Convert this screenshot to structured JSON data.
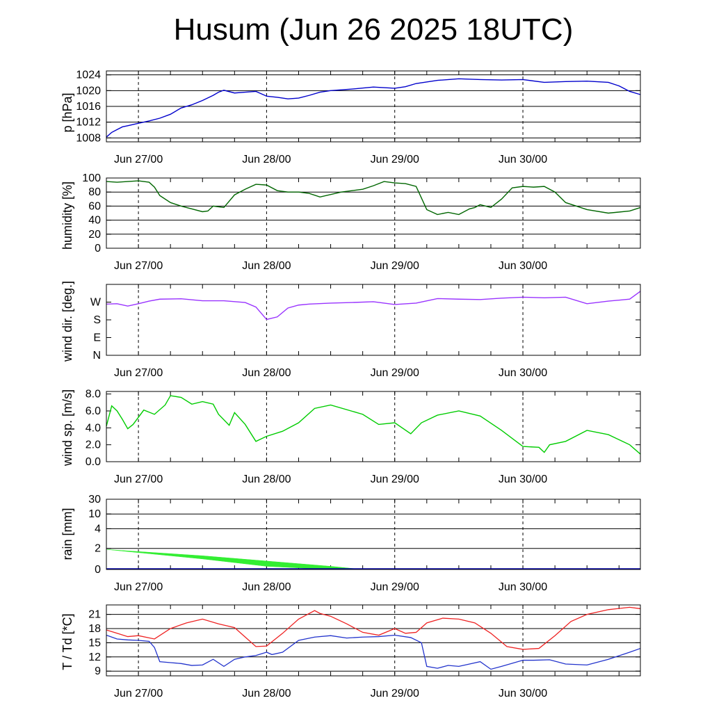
{
  "title": "Husum (Jun 26 2025 18UTC)",
  "x_axis": {
    "start": "2025-06-26T18:00Z",
    "end": "2025-06-30T22:00Z",
    "day_ticks": [
      "Jun 27/00",
      "Jun 28/00",
      "Jun 29/00",
      "Jun 30/00"
    ],
    "day_tick_times": [
      "2025-06-27T00:00Z",
      "2025-06-28T00:00Z",
      "2025-06-29T00:00Z",
      "2025-06-30T00:00Z"
    ]
  },
  "chart_data": [
    {
      "type": "line",
      "ylabel": "p [hPa]",
      "ylim": [
        1007,
        1025
      ],
      "yticks": [
        1008,
        1012,
        1016,
        1020,
        1024
      ],
      "ytick_labels": [
        "1008",
        "1012",
        "1016",
        "1020",
        "1024"
      ],
      "color": "#0000cc",
      "grid": true,
      "x": [
        "2025-06-26T18:00Z",
        "2025-06-26T19:00Z",
        "2025-06-26T20:00Z",
        "2025-06-26T21:00Z",
        "2025-06-26T22:00Z",
        "2025-06-27T00:00Z",
        "2025-06-27T02:00Z",
        "2025-06-27T04:00Z",
        "2025-06-27T06:00Z",
        "2025-06-27T08:00Z",
        "2025-06-27T10:00Z",
        "2025-06-27T12:00Z",
        "2025-06-27T14:00Z",
        "2025-06-27T15:00Z",
        "2025-06-27T16:00Z",
        "2025-06-27T18:00Z",
        "2025-06-27T20:00Z",
        "2025-06-27T22:00Z",
        "2025-06-28T00:00Z",
        "2025-06-28T02:00Z",
        "2025-06-28T04:00Z",
        "2025-06-28T06:00Z",
        "2025-06-28T08:00Z",
        "2025-06-28T10:00Z",
        "2025-06-28T12:00Z",
        "2025-06-28T16:00Z",
        "2025-06-28T20:00Z",
        "2025-06-29T00:00Z",
        "2025-06-29T02:00Z",
        "2025-06-29T04:00Z",
        "2025-06-29T08:00Z",
        "2025-06-29T12:00Z",
        "2025-06-29T16:00Z",
        "2025-06-29T20:00Z",
        "2025-06-30T00:00Z",
        "2025-06-30T04:00Z",
        "2025-06-30T08:00Z",
        "2025-06-30T12:00Z",
        "2025-06-30T16:00Z",
        "2025-06-30T18:00Z",
        "2025-06-30T20:00Z",
        "2025-06-30T22:00Z"
      ],
      "y": [
        1008.2,
        1009.4,
        1010.1,
        1010.8,
        1011.1,
        1011.7,
        1012.3,
        1013.0,
        1014.0,
        1015.6,
        1016.4,
        1017.5,
        1018.8,
        1019.6,
        1020.1,
        1019.4,
        1019.6,
        1019.8,
        1018.6,
        1018.3,
        1017.9,
        1018.1,
        1018.8,
        1019.6,
        1020.0,
        1020.4,
        1020.9,
        1020.6,
        1021.0,
        1021.8,
        1022.6,
        1023.0,
        1022.8,
        1022.7,
        1022.8,
        1022.1,
        1022.3,
        1022.4,
        1022.1,
        1021.2,
        1019.8,
        1019.0
      ]
    },
    {
      "type": "line",
      "ylabel": "humidity [%]",
      "ylim": [
        0,
        100
      ],
      "yticks": [
        0,
        20,
        40,
        60,
        80,
        100
      ],
      "ytick_labels": [
        "0",
        "20",
        "40",
        "60",
        "80",
        "100"
      ],
      "color": "#006600",
      "grid": true,
      "x": [
        "2025-06-26T18:00Z",
        "2025-06-26T20:00Z",
        "2025-06-26T22:00Z",
        "2025-06-27T00:00Z",
        "2025-06-27T02:00Z",
        "2025-06-27T03:00Z",
        "2025-06-27T04:00Z",
        "2025-06-27T06:00Z",
        "2025-06-27T08:00Z",
        "2025-06-27T10:00Z",
        "2025-06-27T12:00Z",
        "2025-06-27T13:00Z",
        "2025-06-27T14:00Z",
        "2025-06-27T16:00Z",
        "2025-06-27T18:00Z",
        "2025-06-27T20:00Z",
        "2025-06-27T22:00Z",
        "2025-06-28T00:00Z",
        "2025-06-28T02:00Z",
        "2025-06-28T04:00Z",
        "2025-06-28T06:00Z",
        "2025-06-28T08:00Z",
        "2025-06-28T10:00Z",
        "2025-06-28T14:00Z",
        "2025-06-28T18:00Z",
        "2025-06-28T20:00Z",
        "2025-06-28T22:00Z",
        "2025-06-29T00:00Z",
        "2025-06-29T02:00Z",
        "2025-06-29T04:00Z",
        "2025-06-29T06:00Z",
        "2025-06-29T08:00Z",
        "2025-06-29T10:00Z",
        "2025-06-29T12:00Z",
        "2025-06-29T14:00Z",
        "2025-06-29T15:00Z",
        "2025-06-29T16:00Z",
        "2025-06-29T18:00Z",
        "2025-06-29T20:00Z",
        "2025-06-29T22:00Z",
        "2025-06-30T00:00Z",
        "2025-06-30T02:00Z",
        "2025-06-30T04:00Z",
        "2025-06-30T06:00Z",
        "2025-06-30T08:00Z",
        "2025-06-30T12:00Z",
        "2025-06-30T16:00Z",
        "2025-06-30T20:00Z",
        "2025-06-30T22:00Z"
      ],
      "y": [
        95,
        94,
        95,
        96,
        94,
        87,
        75,
        65,
        60,
        56,
        52,
        53,
        60,
        58,
        76,
        84,
        91,
        90,
        82,
        80,
        80,
        78,
        73,
        80,
        84,
        89,
        95,
        93,
        92,
        88,
        55,
        48,
        51,
        48,
        56,
        58,
        62,
        58,
        70,
        86,
        88,
        87,
        88,
        80,
        65,
        55,
        50,
        53,
        58
      ]
    },
    {
      "type": "line",
      "ylabel": "wind dir. [deg.]",
      "ylim": [
        0,
        360
      ],
      "yticks": [
        0,
        90,
        180,
        270
      ],
      "ytick_labels": [
        "N",
        "E",
        "S",
        "W"
      ],
      "color": "#9933ff",
      "grid": false,
      "x": [
        "2025-06-26T18:00Z",
        "2025-06-26T20:00Z",
        "2025-06-26T22:00Z",
        "2025-06-27T00:00Z",
        "2025-06-27T02:00Z",
        "2025-06-27T04:00Z",
        "2025-06-27T08:00Z",
        "2025-06-27T12:00Z",
        "2025-06-27T16:00Z",
        "2025-06-27T20:00Z",
        "2025-06-27T22:00Z",
        "2025-06-28T00:00Z",
        "2025-06-28T02:00Z",
        "2025-06-28T04:00Z",
        "2025-06-28T06:00Z",
        "2025-06-28T08:00Z",
        "2025-06-28T12:00Z",
        "2025-06-28T16:00Z",
        "2025-06-28T20:00Z",
        "2025-06-29T00:00Z",
        "2025-06-29T04:00Z",
        "2025-06-29T08:00Z",
        "2025-06-29T12:00Z",
        "2025-06-29T16:00Z",
        "2025-06-29T20:00Z",
        "2025-06-30T00:00Z",
        "2025-06-30T04:00Z",
        "2025-06-30T08:00Z",
        "2025-06-30T12:00Z",
        "2025-06-30T16:00Z",
        "2025-06-30T20:00Z",
        "2025-06-30T22:00Z"
      ],
      "y": [
        260,
        262,
        250,
        262,
        275,
        285,
        287,
        277,
        277,
        268,
        245,
        182,
        195,
        240,
        255,
        260,
        265,
        268,
        272,
        258,
        265,
        288,
        285,
        283,
        290,
        295,
        292,
        295,
        262,
        275,
        285,
        325
      ]
    },
    {
      "type": "line",
      "ylabel": "wind sp. [m/s]",
      "ylim": [
        0,
        8.3
      ],
      "yticks": [
        0,
        2,
        4,
        6,
        8
      ],
      "ytick_labels": [
        "0.0",
        "2.0",
        "4.0",
        "6.0",
        "8.0"
      ],
      "color": "#00cc00",
      "grid": false,
      "x": [
        "2025-06-26T18:00Z",
        "2025-06-26T19:00Z",
        "2025-06-26T20:00Z",
        "2025-06-26T21:00Z",
        "2025-06-26T22:00Z",
        "2025-06-26T23:00Z",
        "2025-06-27T01:00Z",
        "2025-06-27T03:00Z",
        "2025-06-27T05:00Z",
        "2025-06-27T06:00Z",
        "2025-06-27T08:00Z",
        "2025-06-27T10:00Z",
        "2025-06-27T12:00Z",
        "2025-06-27T14:00Z",
        "2025-06-27T15:00Z",
        "2025-06-27T17:00Z",
        "2025-06-27T18:00Z",
        "2025-06-27T20:00Z",
        "2025-06-27T22:00Z",
        "2025-06-28T00:00Z",
        "2025-06-28T03:00Z",
        "2025-06-28T06:00Z",
        "2025-06-28T09:00Z",
        "2025-06-28T12:00Z",
        "2025-06-28T18:00Z",
        "2025-06-28T21:00Z",
        "2025-06-29T00:00Z",
        "2025-06-29T03:00Z",
        "2025-06-29T05:00Z",
        "2025-06-29T08:00Z",
        "2025-06-29T12:00Z",
        "2025-06-29T16:00Z",
        "2025-06-29T20:00Z",
        "2025-06-30T00:00Z",
        "2025-06-30T03:00Z",
        "2025-06-30T04:00Z",
        "2025-06-30T05:00Z",
        "2025-06-30T08:00Z",
        "2025-06-30T12:00Z",
        "2025-06-30T16:00Z",
        "2025-06-30T18:00Z",
        "2025-06-30T20:00Z",
        "2025-06-30T22:00Z"
      ],
      "y": [
        4.2,
        6.6,
        6.0,
        5.0,
        3.9,
        4.4,
        6.1,
        5.6,
        6.7,
        7.8,
        7.6,
        6.8,
        7.1,
        6.8,
        5.6,
        4.3,
        5.8,
        4.4,
        2.4,
        3.0,
        3.6,
        4.6,
        6.3,
        6.7,
        5.6,
        4.4,
        4.6,
        3.3,
        4.6,
        5.5,
        6.0,
        5.4,
        3.7,
        1.8,
        1.7,
        1.1,
        2.0,
        2.4,
        3.7,
        3.2,
        2.6,
        2.0,
        0.9
      ]
    },
    {
      "type": "area",
      "ylabel": "rain [mm]",
      "ylim": [
        0,
        30
      ],
      "yticks": [
        0,
        2,
        4,
        10,
        30
      ],
      "ytick_labels": [
        "0",
        "2",
        "4",
        "10",
        "30"
      ],
      "scale": "log-like (0,2,4,10,30 at uneven spacing)",
      "color": "#33ee33",
      "grid": true,
      "x": [
        "2025-06-26T18:00Z",
        "2025-06-27T00:00Z",
        "2025-06-27T12:00Z",
        "2025-06-28T00:00Z",
        "2025-06-28T12:00Z",
        "2025-06-28T18:00Z",
        "2025-06-29T00:00Z",
        "2025-06-30T22:00Z"
      ],
      "y_upper": [
        1.9,
        1.7,
        1.3,
        0.8,
        0.3,
        0.0,
        0.0,
        0.0
      ],
      "y_lower": [
        1.9,
        1.6,
        1.0,
        0.3,
        0.0,
        0.0,
        0.0,
        0.0
      ]
    },
    {
      "type": "line",
      "ylabel": "T / Td [*C]",
      "ylim": [
        8,
        23
      ],
      "yticks": [
        9,
        12,
        15,
        18,
        21
      ],
      "ytick_labels": [
        "9",
        "12",
        "15",
        "18",
        "21"
      ],
      "grid": true,
      "series": [
        {
          "color": "#ee2222",
          "x": [
            "2025-06-26T18:00Z",
            "2025-06-26T20:00Z",
            "2025-06-26T22:00Z",
            "2025-06-27T00:00Z",
            "2025-06-27T03:00Z",
            "2025-06-27T06:00Z",
            "2025-06-27T09:00Z",
            "2025-06-27T12:00Z",
            "2025-06-27T15:00Z",
            "2025-06-27T18:00Z",
            "2025-06-27T20:00Z",
            "2025-06-27T22:00Z",
            "2025-06-28T00:00Z",
            "2025-06-28T03:00Z",
            "2025-06-28T06:00Z",
            "2025-06-28T09:00Z",
            "2025-06-28T10:00Z",
            "2025-06-28T12:00Z",
            "2025-06-28T15:00Z",
            "2025-06-28T18:00Z",
            "2025-06-28T21:00Z",
            "2025-06-29T00:00Z",
            "2025-06-29T02:00Z",
            "2025-06-29T04:00Z",
            "2025-06-29T06:00Z",
            "2025-06-29T09:00Z",
            "2025-06-29T12:00Z",
            "2025-06-29T15:00Z",
            "2025-06-29T18:00Z",
            "2025-06-29T21:00Z",
            "2025-06-30T00:00Z",
            "2025-06-30T03:00Z",
            "2025-06-30T06:00Z",
            "2025-06-30T09:00Z",
            "2025-06-30T12:00Z",
            "2025-06-30T16:00Z",
            "2025-06-30T20:00Z",
            "2025-06-30T22:00Z"
          ],
          "y": [
            17.7,
            17.0,
            16.3,
            16.5,
            15.8,
            18.0,
            19.2,
            20.0,
            19.0,
            18.2,
            16.2,
            14.2,
            14.3,
            17.0,
            20.0,
            21.8,
            21.2,
            20.6,
            19.0,
            17.2,
            16.6,
            18.0,
            17.0,
            17.2,
            19.2,
            20.2,
            20.0,
            19.2,
            17.0,
            14.2,
            13.6,
            13.8,
            16.5,
            19.5,
            21.0,
            22.0,
            22.5,
            22.2
          ]
        },
        {
          "color": "#2233cc",
          "x": [
            "2025-06-26T18:00Z",
            "2025-06-26T20:00Z",
            "2025-06-26T22:00Z",
            "2025-06-27T00:00Z",
            "2025-06-27T02:00Z",
            "2025-06-27T03:00Z",
            "2025-06-27T04:00Z",
            "2025-06-27T06:00Z",
            "2025-06-27T08:00Z",
            "2025-06-27T10:00Z",
            "2025-06-27T12:00Z",
            "2025-06-27T14:00Z",
            "2025-06-27T16:00Z",
            "2025-06-27T18:00Z",
            "2025-06-27T20:00Z",
            "2025-06-27T22:00Z",
            "2025-06-28T00:00Z",
            "2025-06-28T01:00Z",
            "2025-06-28T03:00Z",
            "2025-06-28T06:00Z",
            "2025-06-28T09:00Z",
            "2025-06-28T12:00Z",
            "2025-06-28T15:00Z",
            "2025-06-28T18:00Z",
            "2025-06-28T21:00Z",
            "2025-06-29T00:00Z",
            "2025-06-29T03:00Z",
            "2025-06-29T05:00Z",
            "2025-06-29T06:00Z",
            "2025-06-29T08:00Z",
            "2025-06-29T10:00Z",
            "2025-06-29T12:00Z",
            "2025-06-29T14:00Z",
            "2025-06-29T16:00Z",
            "2025-06-29T18:00Z",
            "2025-06-29T20:00Z",
            "2025-06-30T00:00Z",
            "2025-06-30T02:00Z",
            "2025-06-30T05:00Z",
            "2025-06-30T08:00Z",
            "2025-06-30T12:00Z",
            "2025-06-30T16:00Z",
            "2025-06-30T20:00Z",
            "2025-06-30T22:00Z"
          ],
          "y": [
            16.6,
            15.8,
            15.6,
            15.5,
            15.3,
            14.0,
            11.0,
            10.8,
            10.6,
            10.2,
            10.3,
            11.5,
            10.0,
            11.5,
            12.0,
            12.3,
            13.0,
            12.5,
            13.0,
            15.5,
            16.2,
            16.5,
            16.0,
            16.2,
            16.3,
            16.6,
            16.1,
            15.0,
            10.0,
            9.6,
            10.2,
            10.0,
            10.5,
            11.0,
            9.4,
            10.0,
            11.3,
            11.3,
            11.4,
            10.5,
            10.3,
            11.5,
            13.0,
            13.8
          ]
        }
      ]
    }
  ]
}
